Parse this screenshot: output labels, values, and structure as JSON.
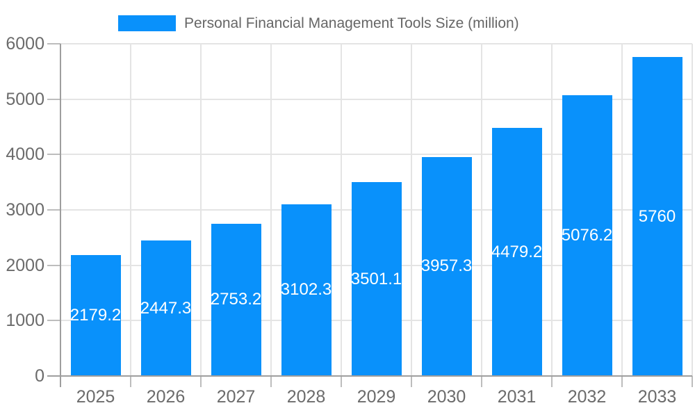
{
  "chart_data": {
    "type": "bar",
    "title": "Personal Financial Management Tools Size (million)",
    "categories": [
      "2025",
      "2026",
      "2027",
      "2028",
      "2029",
      "2030",
      "2031",
      "2032",
      "2033"
    ],
    "values": [
      2179.2,
      2447.3,
      2753.2,
      3102.3,
      3501.1,
      3957.3,
      4479.2,
      5076.2,
      5760
    ],
    "xlabel": "",
    "ylabel": "",
    "ylim": [
      0,
      6000
    ],
    "y_ticks": [
      0,
      1000,
      2000,
      3000,
      4000,
      5000,
      6000
    ],
    "grid": true,
    "legend_position": "top-center",
    "colors": {
      "bar": "#0991fb",
      "grid": "#e4e4e4",
      "axis": "#9e9e9e",
      "tick": "#bdbdbd",
      "axis_label": "#6b6b6b",
      "title": "#666666",
      "value_label": "#ffffff"
    }
  }
}
